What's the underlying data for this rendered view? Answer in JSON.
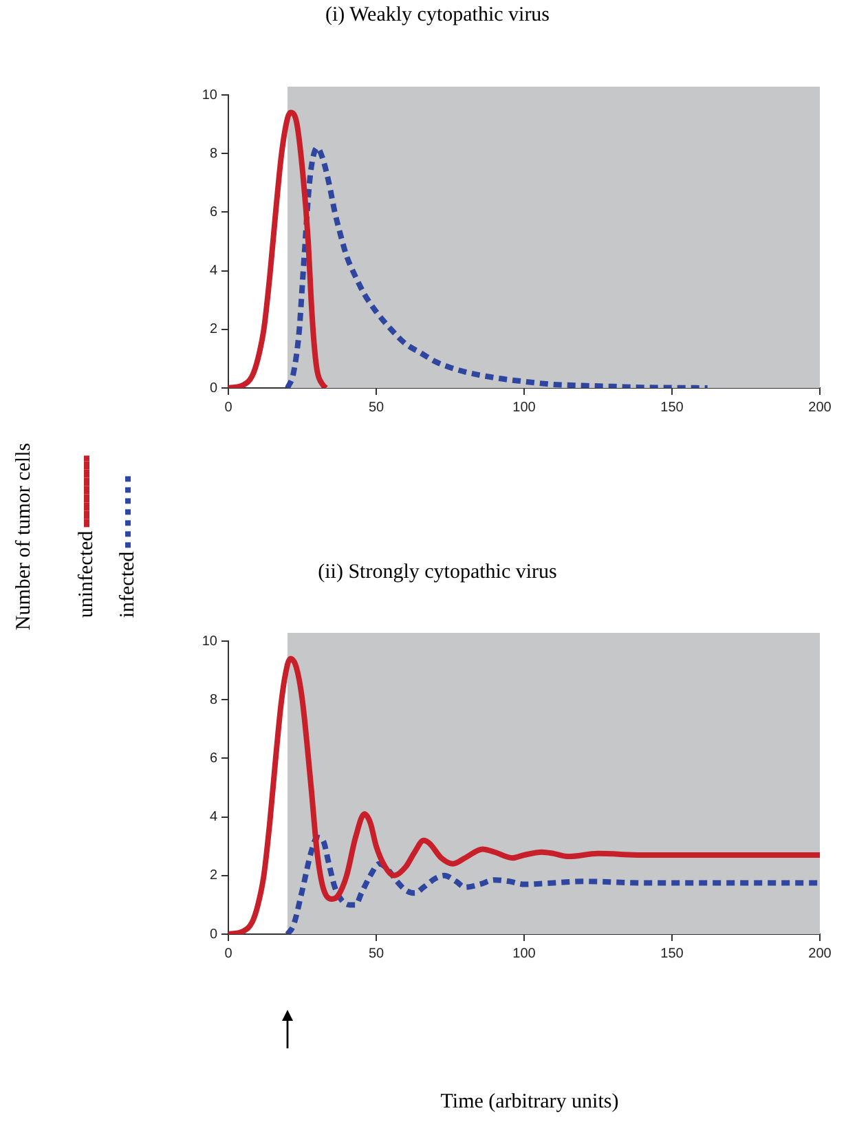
{
  "chart_data": [
    {
      "type": "line",
      "title": "(i) Weakly cytopathic virus",
      "ylabel": "Number of tumor cells",
      "legend": "left",
      "marker": "none",
      "xlim": [
        0,
        200
      ],
      "ylim": [
        0,
        10
      ],
      "xticks": [
        0,
        50,
        100,
        150,
        200
      ],
      "yticks": [
        0,
        2,
        4,
        6,
        8,
        10
      ],
      "grid": false,
      "bands": [
        {
          "axis": "x",
          "from": 20,
          "to": 200,
          "color": "#c6c7c9"
        }
      ],
      "series": [
        {
          "name": "uninfected",
          "color": "#c8202a",
          "line_style": "solid",
          "x": [
            0,
            5,
            8,
            10,
            12,
            14,
            16,
            18,
            20,
            21,
            23,
            25,
            27,
            28,
            29,
            30,
            32,
            33
          ],
          "values": [
            0,
            0.1,
            0.4,
            1,
            2,
            3.8,
            6,
            8,
            9.2,
            9.4,
            9.1,
            7.5,
            5,
            3,
            1.5,
            0.6,
            0.1,
            0
          ]
        },
        {
          "name": "infected",
          "color": "#2f46a0",
          "line_style": "dashed",
          "x": [
            20,
            22,
            24,
            25,
            26,
            27,
            28,
            30,
            32,
            34,
            36,
            38,
            40,
            43,
            46,
            50,
            55,
            60,
            65,
            70,
            75,
            80,
            90,
            100,
            110,
            120,
            130,
            140,
            150,
            162
          ],
          "values": [
            0,
            0.5,
            2,
            3.5,
            5,
            6.5,
            7.5,
            8.2,
            7.8,
            7,
            6,
            5.2,
            4.5,
            3.8,
            3.2,
            2.6,
            2,
            1.5,
            1.2,
            0.9,
            0.7,
            0.55,
            0.35,
            0.22,
            0.12,
            0.08,
            0.05,
            0.02,
            0.01,
            0
          ]
        }
      ]
    },
    {
      "type": "line",
      "title": "(ii) Strongly cytopathic virus",
      "xlabel": "Time (arbitrary units)",
      "marker": "none",
      "xlim": [
        0,
        200
      ],
      "ylim": [
        0,
        10
      ],
      "xticks": [
        0,
        50,
        100,
        150,
        200
      ],
      "yticks": [
        0,
        2,
        4,
        6,
        8,
        10
      ],
      "grid": false,
      "bands": [
        {
          "axis": "x",
          "from": 20,
          "to": 200,
          "color": "#c6c7c9"
        }
      ],
      "series": [
        {
          "color": "#c8202a",
          "line_style": "solid",
          "x": [
            0,
            5,
            8,
            10,
            12,
            14,
            16,
            18,
            20,
            21,
            23,
            25,
            28,
            30,
            32,
            35,
            37,
            40,
            43,
            46,
            48,
            50,
            53,
            56,
            60,
            63,
            66,
            68,
            72,
            76,
            80,
            86,
            90,
            96,
            100,
            106,
            110,
            115,
            125,
            140,
            200
          ],
          "values": [
            0,
            0.1,
            0.4,
            1,
            2,
            3.8,
            6,
            8,
            9.2,
            9.4,
            9.1,
            8,
            5,
            2.8,
            1.6,
            1.2,
            1.3,
            2,
            3.3,
            4.1,
            3.8,
            3,
            2.3,
            2,
            2.3,
            2.8,
            3.2,
            3.1,
            2.6,
            2.4,
            2.6,
            2.9,
            2.8,
            2.6,
            2.7,
            2.8,
            2.75,
            2.65,
            2.75,
            2.7,
            2.7
          ]
        },
        {
          "color": "#2f46a0",
          "line_style": "dashed",
          "x": [
            20,
            22,
            25,
            28,
            30,
            32,
            34,
            36,
            38,
            41,
            43,
            45,
            48,
            51,
            54,
            57,
            60,
            63,
            66,
            70,
            73,
            77,
            80,
            85,
            90,
            95,
            100,
            110,
            120,
            140,
            200
          ],
          "values": [
            0,
            0.3,
            1.5,
            2.8,
            3.3,
            3.2,
            2.4,
            1.6,
            1.2,
            1,
            1,
            1.4,
            2,
            2.4,
            2.2,
            1.8,
            1.5,
            1.4,
            1.6,
            1.9,
            2,
            1.8,
            1.6,
            1.7,
            1.85,
            1.8,
            1.7,
            1.75,
            1.8,
            1.75,
            1.75
          ]
        }
      ]
    }
  ]
}
